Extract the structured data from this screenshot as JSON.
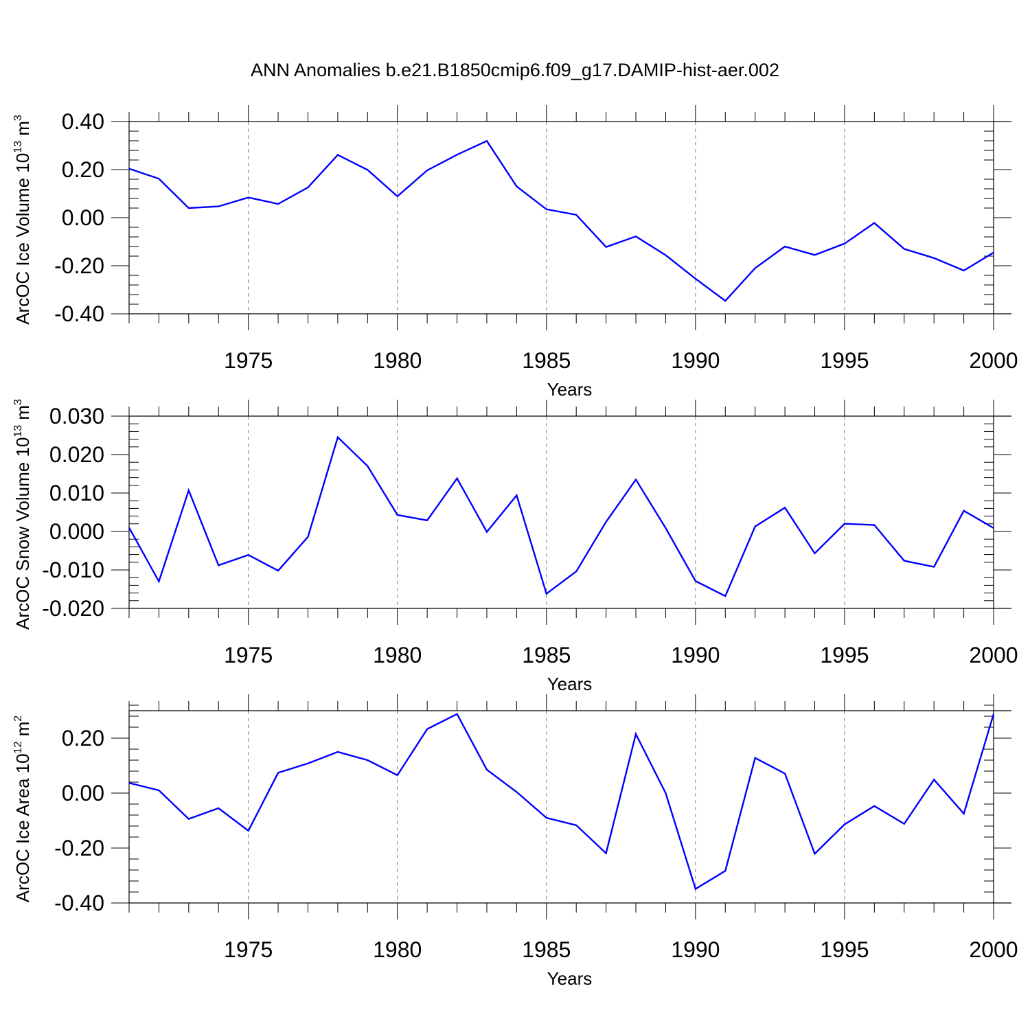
{
  "title": "ANN Anomalies b.e21.B1850cmip6.f09_g17.DAMIP-hist-aer.002",
  "colors": {
    "line": "#0000ff",
    "axis": "#000000",
    "grid": "#808080"
  },
  "chart_data": [
    {
      "type": "line",
      "ylabel": {
        "main": "ArcOC Ice Volume 10",
        "sup": "13",
        "tail": " m",
        "sup2": "3"
      },
      "xlabel": "Years",
      "xlim": [
        1971,
        2000
      ],
      "ylim": [
        -0.4,
        0.4
      ],
      "xticks": [
        1975,
        1980,
        1985,
        1990,
        1995,
        2000
      ],
      "xtick_labels": [
        "1975",
        "1980",
        "1985",
        "1990",
        "1995",
        "2000"
      ],
      "yticks": [
        0.4,
        0.2,
        0.0,
        -0.2,
        -0.4
      ],
      "ytick_labels": [
        "0.40",
        "0.20",
        "0.00",
        "-0.20",
        "-0.40"
      ],
      "grid_x": true,
      "series": [
        {
          "x": [
            1971,
            1972,
            1973,
            1974,
            1975,
            1976,
            1977,
            1978,
            1979,
            1980,
            1981,
            1982,
            1983,
            1984,
            1985,
            1986,
            1987,
            1988,
            1989,
            1990,
            1991,
            1992,
            1993,
            1994,
            1995,
            1996,
            1997,
            1998,
            1999,
            2000
          ],
          "values": [
            0.204,
            0.162,
            0.04,
            0.047,
            0.084,
            0.057,
            0.126,
            0.261,
            0.199,
            0.089,
            0.197,
            0.262,
            0.319,
            0.13,
            0.035,
            0.012,
            -0.122,
            -0.078,
            -0.156,
            -0.254,
            -0.346,
            -0.21,
            -0.12,
            -0.155,
            -0.108,
            -0.022,
            -0.13,
            -0.168,
            -0.22,
            -0.145
          ]
        }
      ]
    },
    {
      "type": "line",
      "ylabel": {
        "main": "ArcOC Snow Volume 10",
        "sup": "13",
        "tail": " m",
        "sup2": "3"
      },
      "xlabel": "Years",
      "xlim": [
        1971,
        2000
      ],
      "ylim": [
        -0.02,
        0.03
      ],
      "xticks": [
        1975,
        1980,
        1985,
        1990,
        1995,
        2000
      ],
      "xtick_labels": [
        "1975",
        "1980",
        "1985",
        "1990",
        "1995",
        "2000"
      ],
      "yticks": [
        0.03,
        0.02,
        0.01,
        0.0,
        -0.01,
        -0.02
      ],
      "ytick_labels": [
        "0.030",
        "0.020",
        "0.010",
        "0.000",
        "-0.010",
        "-0.020"
      ],
      "grid_x": true,
      "series": [
        {
          "x": [
            1971,
            1972,
            1973,
            1974,
            1975,
            1976,
            1977,
            1978,
            1979,
            1980,
            1981,
            1982,
            1983,
            1984,
            1985,
            1986,
            1987,
            1988,
            1989,
            1990,
            1991,
            1992,
            1993,
            1994,
            1995,
            1996,
            1997,
            1998,
            1999,
            2000
          ],
          "values": [
            0.001,
            -0.013,
            0.0107,
            -0.0088,
            -0.0061,
            -0.0102,
            -0.0014,
            0.0245,
            0.017,
            0.0043,
            0.0029,
            0.0138,
            -0.0001,
            0.0094,
            -0.0162,
            -0.0104,
            0.0025,
            0.0135,
            0.0009,
            -0.0129,
            -0.0168,
            0.0013,
            0.0062,
            -0.0057,
            0.002,
            0.0017,
            -0.0076,
            -0.0092,
            0.0054,
            0.0009
          ]
        }
      ]
    },
    {
      "type": "line",
      "ylabel": {
        "main": "ArcOC Ice Area 10",
        "sup": "12",
        "tail": " m",
        "sup2": "2"
      },
      "xlabel": "Years",
      "xlim": [
        1971,
        2000
      ],
      "ylim": [
        -0.4,
        0.3
      ],
      "xticks": [
        1975,
        1980,
        1985,
        1990,
        1995,
        2000
      ],
      "xtick_labels": [
        "1975",
        "1980",
        "1985",
        "1990",
        "1995",
        "2000"
      ],
      "yticks": [
        0.2,
        0.0,
        -0.2,
        -0.4
      ],
      "ytick_labels": [
        "0.20",
        "0.00",
        "-0.20",
        "-0.40"
      ],
      "grid_x": true,
      "series": [
        {
          "x": [
            1971,
            1972,
            1973,
            1974,
            1975,
            1976,
            1977,
            1978,
            1979,
            1980,
            1981,
            1982,
            1983,
            1984,
            1985,
            1986,
            1987,
            1988,
            1989,
            1990,
            1991,
            1992,
            1993,
            1994,
            1995,
            1996,
            1997,
            1998,
            1999,
            2000
          ],
          "values": [
            0.037,
            0.01,
            -0.094,
            -0.055,
            -0.137,
            0.074,
            0.108,
            0.15,
            0.12,
            0.065,
            0.233,
            0.288,
            0.085,
            0.004,
            -0.09,
            -0.117,
            -0.219,
            0.215,
            0.0,
            -0.349,
            -0.283,
            0.128,
            0.071,
            -0.221,
            -0.114,
            -0.047,
            -0.112,
            0.049,
            -0.075,
            0.288
          ]
        }
      ]
    }
  ]
}
